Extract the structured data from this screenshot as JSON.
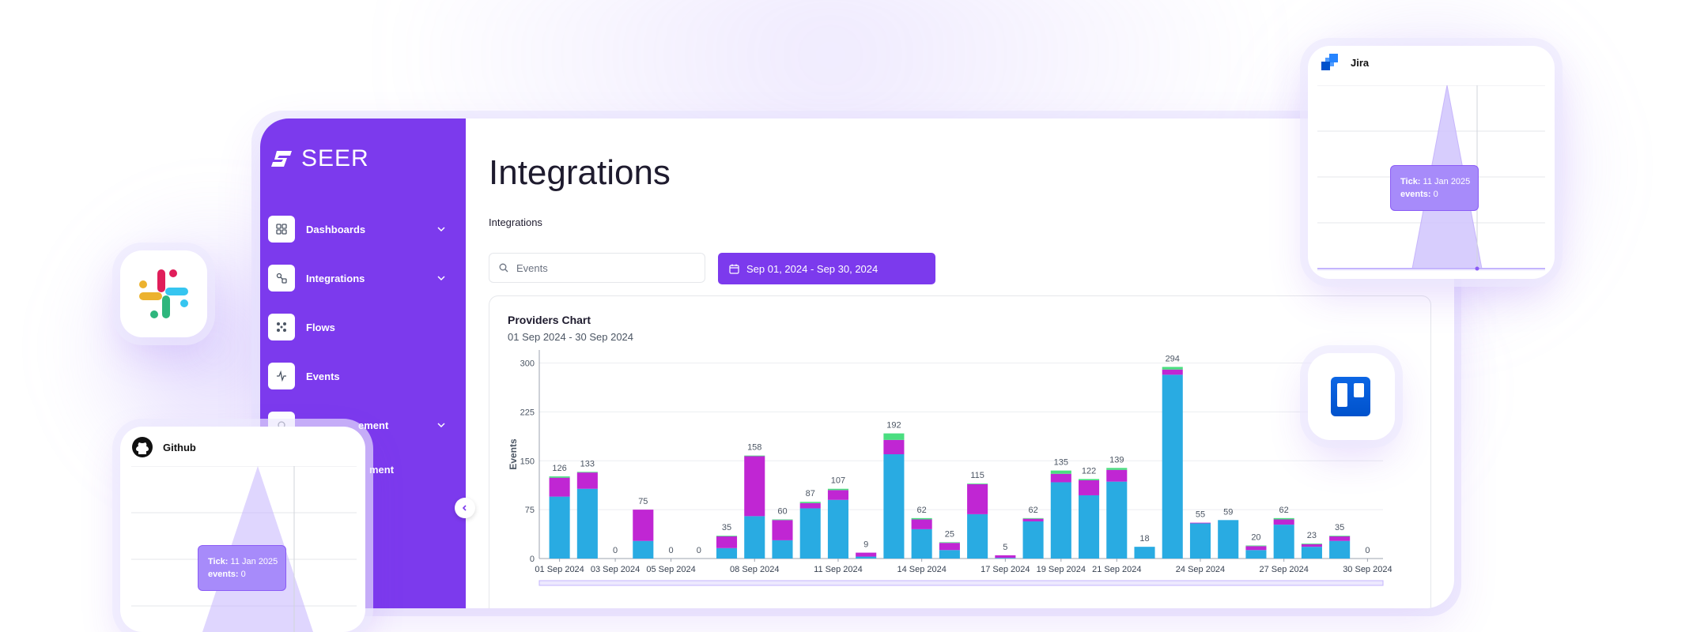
{
  "brand": {
    "name": "SEER"
  },
  "sidebar": {
    "items": [
      {
        "label": "Dashboards",
        "icon": "grid-icon",
        "expandable": true
      },
      {
        "label": "Integrations",
        "icon": "link-icon",
        "expandable": true
      },
      {
        "label": "Flows",
        "icon": "flows-icon",
        "expandable": false
      },
      {
        "label": "Events",
        "icon": "activity-icon",
        "expandable": false
      },
      {
        "label": "ement",
        "icon": "settings-icon",
        "expandable": true
      },
      {
        "label": "ment",
        "icon": "",
        "expandable": false
      }
    ]
  },
  "page": {
    "title": "Integrations",
    "breadcrumb": "Integrations"
  },
  "search": {
    "placeholder": "Events",
    "value": ""
  },
  "date_range": {
    "label": "Sep 01, 2024 - Sep 30, 2024"
  },
  "chart_card": {
    "title": "Providers Chart",
    "subtitle": "01 Sep 2024 - 30 Sep 2024"
  },
  "chart_data": {
    "type": "bar",
    "stacked": true,
    "ylabel": "Events",
    "ylim": [
      0,
      320
    ],
    "yticks": [
      0,
      75,
      150,
      225,
      300
    ],
    "grid": true,
    "colors": {
      "blue": "#29abe2",
      "magenta": "#c026d3",
      "green": "#4ade80"
    },
    "xtick_labels": [
      "01 Sep 2024",
      "03 Sep 2024",
      "05 Sep 2024",
      "08 Sep 2024",
      "11 Sep 2024",
      "14 Sep 2024",
      "17 Sep 2024",
      "19 Sep 2024",
      "21 Sep 2024",
      "24 Sep 2024",
      "27 Sep 2024",
      "30 Sep 2024"
    ],
    "xtick_positions": [
      0,
      2,
      4,
      7,
      10,
      13,
      16,
      18,
      20,
      23,
      26,
      29
    ],
    "categories": [
      "01 Sep 2024",
      "02 Sep 2024",
      "03 Sep 2024",
      "04 Sep 2024",
      "05 Sep 2024",
      "06 Sep 2024",
      "07 Sep 2024",
      "08 Sep 2024",
      "09 Sep 2024",
      "10 Sep 2024",
      "11 Sep 2024",
      "12 Sep 2024",
      "13 Sep 2024",
      "14 Sep 2024",
      "15 Sep 2024",
      "16 Sep 2024",
      "17 Sep 2024",
      "18 Sep 2024",
      "19 Sep 2024",
      "20 Sep 2024",
      "21 Sep 2024",
      "22 Sep 2024",
      "23 Sep 2024",
      "24 Sep 2024",
      "25 Sep 2024",
      "26 Sep 2024",
      "27 Sep 2024",
      "28 Sep 2024",
      "29 Sep 2024",
      "30 Sep 2024"
    ],
    "totals": [
      126,
      133,
      0,
      75,
      0,
      0,
      35,
      158,
      60,
      87,
      107,
      9,
      192,
      62,
      25,
      115,
      5,
      62,
      135,
      122,
      139,
      18,
      294,
      55,
      59,
      20,
      62,
      23,
      35,
      0
    ],
    "series": [
      {
        "color": "blue",
        "values": [
          95,
          107,
          0,
          27,
          0,
          0,
          16,
          65,
          28,
          77,
          90,
          3,
          160,
          45,
          13,
          68,
          1,
          57,
          117,
          97,
          118,
          18,
          282,
          54,
          59,
          13,
          52,
          18,
          27,
          0
        ]
      },
      {
        "color": "magenta",
        "values": [
          29,
          25,
          0,
          48,
          0,
          0,
          18,
          92,
          31,
          8,
          15,
          6,
          22,
          15,
          11,
          46,
          4,
          4,
          13,
          23,
          18,
          0,
          8,
          1,
          0,
          6,
          8,
          4,
          7,
          0
        ]
      },
      {
        "color": "green",
        "values": [
          2,
          1,
          0,
          0,
          0,
          0,
          1,
          1,
          1,
          2,
          2,
          0,
          10,
          2,
          1,
          1,
          0,
          1,
          5,
          2,
          3,
          0,
          4,
          0,
          0,
          1,
          2,
          1,
          1,
          0
        ]
      }
    ]
  },
  "jira_card": {
    "name": "Jira",
    "tooltip_tick_label": "Tick:",
    "tooltip_tick_value": "11 Jan 2025",
    "tooltip_events_label": "events:",
    "tooltip_events_value": "0"
  },
  "github_card": {
    "name": "Github",
    "tooltip_tick_label": "Tick:",
    "tooltip_tick_value": "11 Jan 2025",
    "tooltip_events_label": "events:",
    "tooltip_events_value": "0"
  }
}
